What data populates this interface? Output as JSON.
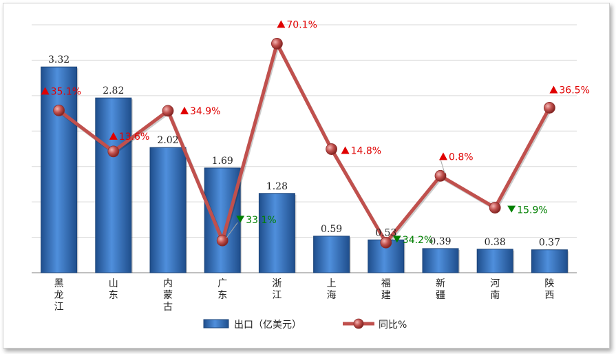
{
  "chart_data": {
    "type": "bar",
    "categories": [
      "黑龙江",
      "山东",
      "内蒙古",
      "广东",
      "浙江",
      "上海",
      "福建",
      "新疆",
      "河南",
      "陕西"
    ],
    "series": [
      {
        "name": "出口（亿美元）",
        "type": "bar",
        "values": [
          3.32,
          2.82,
          2.02,
          1.69,
          1.28,
          0.59,
          0.53,
          0.39,
          0.38,
          0.37
        ],
        "labels": [
          "3.32",
          "2.82",
          "2.02",
          "1.69",
          "1.28",
          "0.59",
          "0.53",
          "0.39",
          "0.38",
          "0.37"
        ],
        "color": "#2e6bb5"
      },
      {
        "name": "同比%",
        "type": "line",
        "values": [
          35.1,
          13.6,
          34.9,
          -33.1,
          70.1,
          14.8,
          -34.2,
          0.8,
          -15.9,
          36.5
        ],
        "labels": [
          "35.1%",
          "13.6%",
          "34.9%",
          "33.1%",
          "70.1%",
          "14.8%",
          "34.2%",
          "0.8%",
          "15.9%",
          "36.5%"
        ],
        "color": "#c0504d",
        "up_color": "#e00000",
        "down_color": "#008000"
      }
    ],
    "bar_axis": {
      "ylim": [
        0,
        4
      ]
    },
    "line_axis": {
      "ylim": [
        -50,
        80
      ]
    },
    "grid": true,
    "legend": "bottom-center"
  }
}
